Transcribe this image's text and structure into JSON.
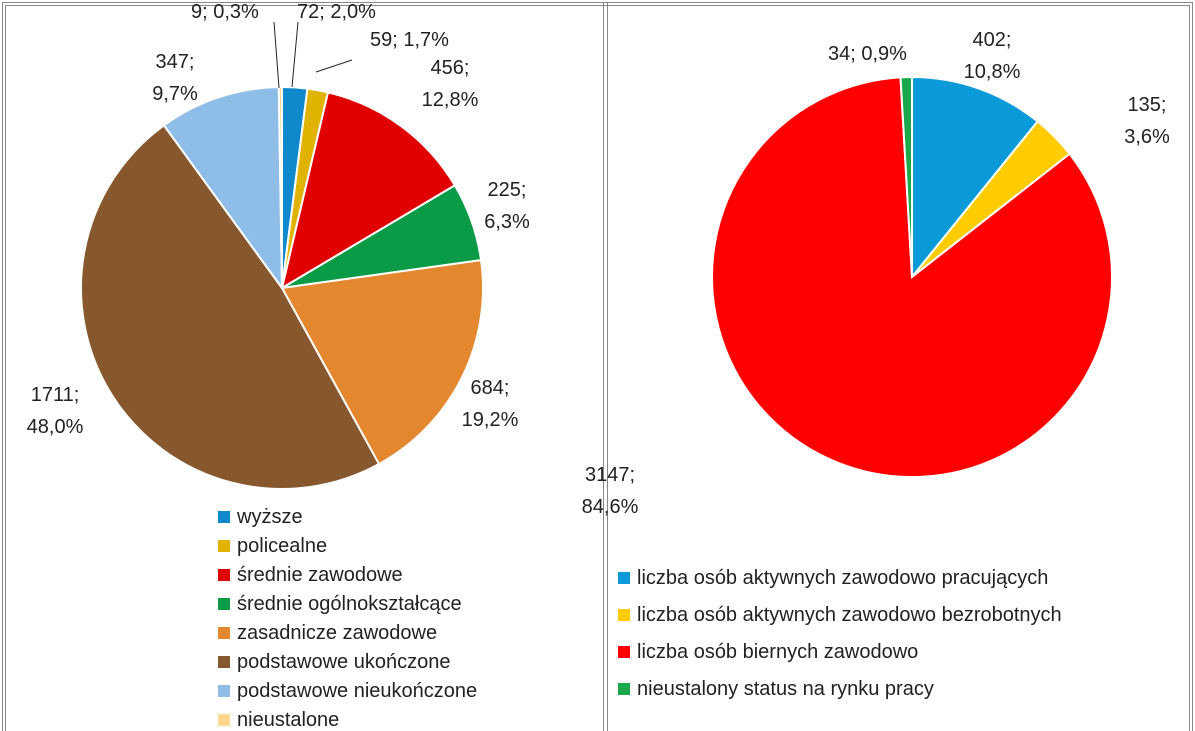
{
  "chart_data": [
    {
      "type": "pie",
      "categories": [
        "wyższe",
        "policealne",
        "średnie zawodowe",
        "średnie ogólnokształcące",
        "zasadnicze zawodowe",
        "podstawowe ukończone",
        "podstawowe nieukończone",
        "nieustalone"
      ],
      "values": [
        72,
        59,
        456,
        225,
        684,
        1711,
        347,
        9
      ],
      "value_labels": [
        "72; 2,0%",
        "59; 1,7%",
        "456; 12,8%",
        "225; 6,3%",
        "684; 19,2%",
        "1711; 48,0%",
        "347; 9,7%",
        "9; 0,3%"
      ],
      "colors": [
        "#1088cc",
        "#dfb300",
        "#e00000",
        "#0b9a45",
        "#e3882f",
        "#87582d",
        "#8ebde8",
        "#fdd88e"
      ]
    },
    {
      "type": "pie",
      "categories": [
        "liczba osób aktywnych zawodowo pracujących",
        "liczba osób aktywnych zawodowo bezrobotnych",
        "liczba osób biernych zawodowo",
        "nieustalony status na rynku pracy"
      ],
      "values": [
        402,
        135,
        3147,
        34
      ],
      "value_labels": [
        "402; 10,8%",
        "135; 3,6%",
        "3147; 84,6%",
        "34; 0,9%"
      ],
      "colors": [
        "#0a9ad8",
        "#ffcc00",
        "#ff0000",
        "#1aa84a"
      ]
    }
  ]
}
